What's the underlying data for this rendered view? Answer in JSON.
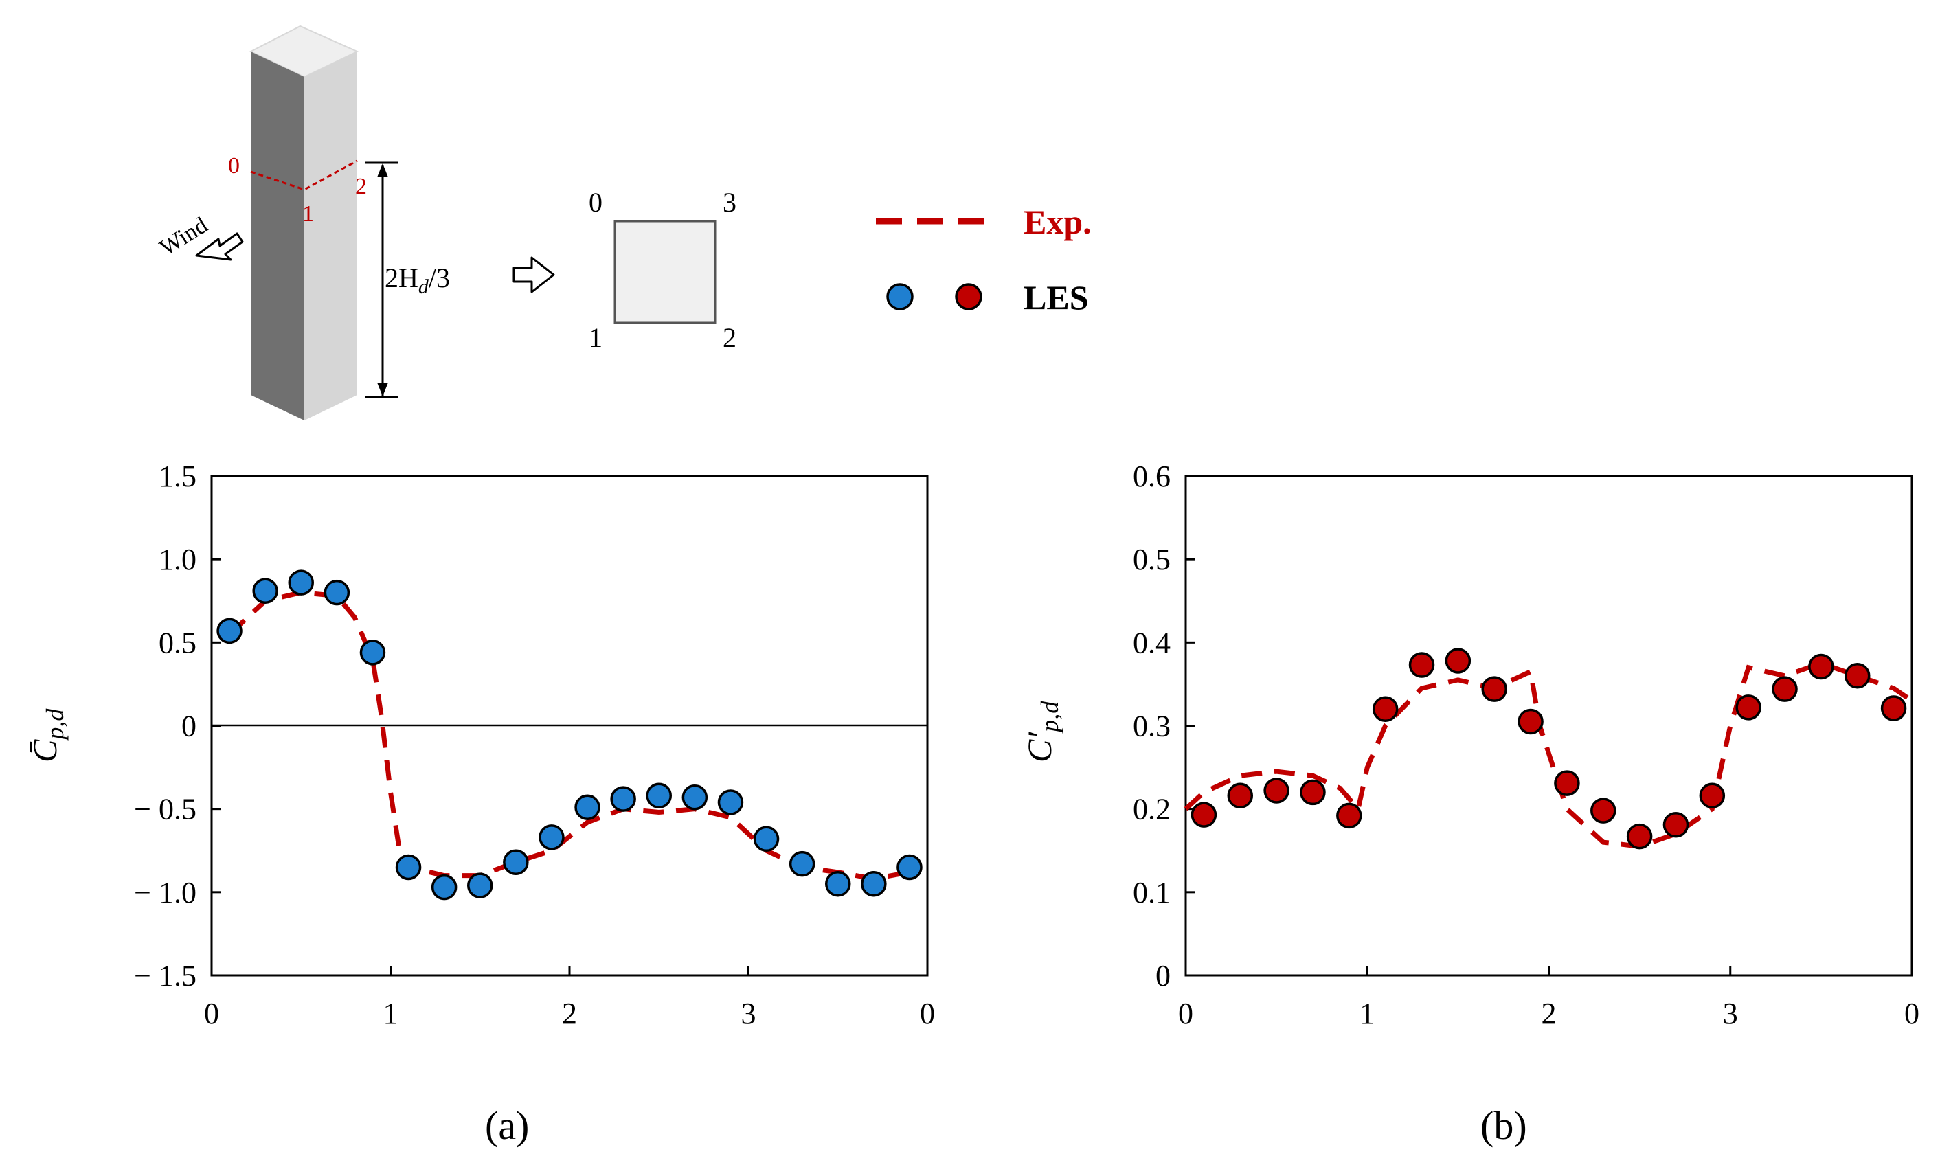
{
  "schematic": {
    "wind_label": "Wind",
    "building_nodes": [
      "0",
      "1",
      "2"
    ],
    "height_label": "2H",
    "height_subscript": "d",
    "height_suffix": "/3",
    "section_nodes": [
      "0",
      "3",
      "1",
      "2"
    ]
  },
  "legend": {
    "exp_label": "Exp.",
    "les_label": "LES"
  },
  "colors": {
    "exp_line": "#c00000",
    "les_blue": "#1f7fd0",
    "les_red": "#c00000",
    "building_dark": "#6e6e6e",
    "building_light": "#d4d4d4",
    "section_fill": "#f0f0f0"
  },
  "chart_data": [
    {
      "type": "line",
      "panel_label": "(a)",
      "ylabel": "C̄p,d",
      "ylabel_base": "C̄",
      "ylabel_sub": "p,d",
      "xlim": [
        0,
        4
      ],
      "ylim": [
        -1.5,
        1.5
      ],
      "xtick_labels": [
        "0",
        "1",
        "2",
        "3",
        "0"
      ],
      "ytick_values": [
        1.5,
        1.0,
        0.5,
        0,
        -0.5,
        -1.0,
        -1.5
      ],
      "ytick_labels": [
        "1.5",
        "1.0",
        "0.5",
        "0",
        "− 0.5",
        "− 1.0",
        "− 1.5"
      ],
      "zero_line": true,
      "series": [
        {
          "name": "Exp.",
          "style": "dashed-line",
          "x": [
            0.1,
            0.3,
            0.5,
            0.7,
            0.8,
            0.9,
            0.95,
            1.0,
            1.05,
            1.1,
            1.3,
            1.5,
            1.7,
            1.9,
            2.1,
            2.3,
            2.5,
            2.7,
            2.9,
            3.1,
            3.3,
            3.5,
            3.7,
            3.9
          ],
          "y": [
            0.55,
            0.75,
            0.8,
            0.78,
            0.65,
            0.4,
            0.05,
            -0.4,
            -0.75,
            -0.85,
            -0.9,
            -0.9,
            -0.82,
            -0.75,
            -0.58,
            -0.5,
            -0.52,
            -0.5,
            -0.55,
            -0.75,
            -0.85,
            -0.88,
            -0.92,
            -0.88
          ]
        },
        {
          "name": "LES",
          "style": "markers",
          "x": [
            0.1,
            0.3,
            0.5,
            0.7,
            0.9,
            1.1,
            1.3,
            1.5,
            1.7,
            1.9,
            2.1,
            2.3,
            2.5,
            2.7,
            2.9,
            3.1,
            3.3,
            3.5,
            3.7,
            3.9
          ],
          "y": [
            0.57,
            0.81,
            0.86,
            0.8,
            0.44,
            -0.85,
            -0.97,
            -0.96,
            -0.82,
            -0.67,
            -0.49,
            -0.44,
            -0.42,
            -0.43,
            -0.46,
            -0.68,
            -0.83,
            -0.95,
            -0.95,
            -0.85
          ]
        }
      ]
    },
    {
      "type": "line",
      "panel_label": "(b)",
      "ylabel": "C′p,d",
      "ylabel_base": "C′",
      "ylabel_sub": "p,d",
      "xlim": [
        0,
        4
      ],
      "ylim": [
        0,
        0.6
      ],
      "xtick_labels": [
        "0",
        "1",
        "2",
        "3",
        "0"
      ],
      "ytick_values": [
        0.6,
        0.5,
        0.4,
        0.3,
        0.2,
        0.1,
        0
      ],
      "ytick_labels": [
        "0.6",
        "0.5",
        "0.4",
        "0.3",
        "0.2",
        "0.1",
        "0"
      ],
      "zero_line": false,
      "series": [
        {
          "name": "Exp.",
          "style": "dashed-line",
          "x": [
            0.0,
            0.1,
            0.3,
            0.5,
            0.7,
            0.85,
            0.95,
            1.0,
            1.1,
            1.3,
            1.5,
            1.7,
            1.9,
            1.95,
            2.1,
            2.3,
            2.5,
            2.7,
            2.9,
            3.0,
            3.1,
            3.3,
            3.5,
            3.7,
            3.9,
            4.0
          ],
          "y": [
            0.2,
            0.22,
            0.24,
            0.245,
            0.24,
            0.225,
            0.2,
            0.25,
            0.3,
            0.345,
            0.355,
            0.345,
            0.365,
            0.3,
            0.2,
            0.16,
            0.155,
            0.17,
            0.2,
            0.3,
            0.37,
            0.36,
            0.375,
            0.36,
            0.345,
            0.33
          ]
        },
        {
          "name": "LES",
          "style": "markers",
          "x": [
            0.1,
            0.3,
            0.5,
            0.7,
            0.9,
            1.1,
            1.3,
            1.5,
            1.7,
            1.9,
            2.1,
            2.3,
            2.5,
            2.7,
            2.9,
            3.1,
            3.3,
            3.5,
            3.7,
            3.9
          ],
          "y": [
            0.193,
            0.216,
            0.222,
            0.22,
            0.192,
            0.32,
            0.373,
            0.378,
            0.344,
            0.305,
            0.231,
            0.198,
            0.167,
            0.181,
            0.216,
            0.322,
            0.344,
            0.371,
            0.36,
            0.321
          ]
        }
      ]
    }
  ]
}
